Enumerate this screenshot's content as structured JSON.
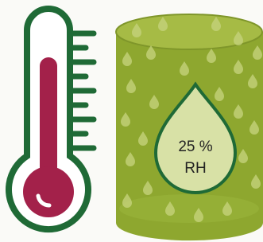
{
  "humidity": {
    "reading": "25 %",
    "unit": "RH"
  }
}
